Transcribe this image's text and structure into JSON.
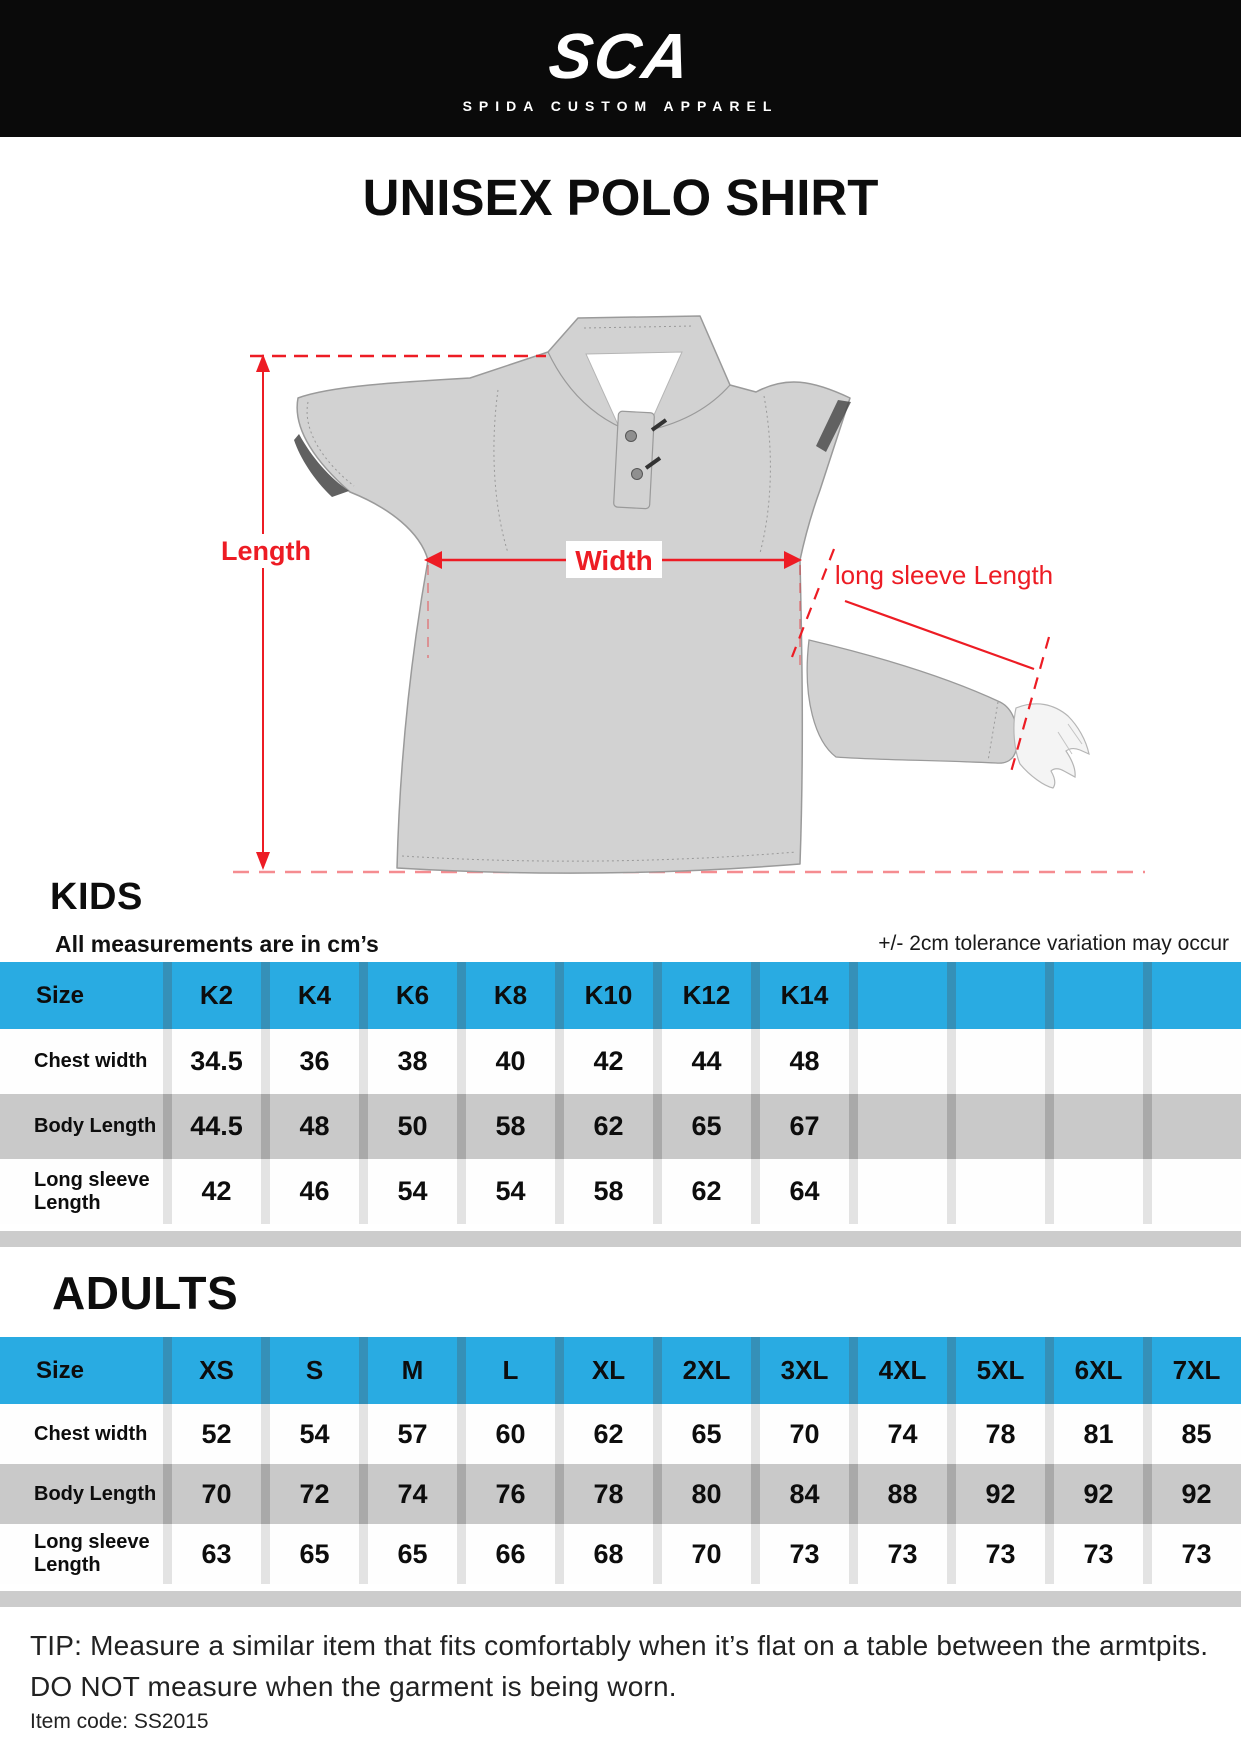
{
  "brand": {
    "logo": "SCA",
    "subtitle": "SPIDA CUSTOM APPAREL"
  },
  "title": "UNISEX POLO SHIRT",
  "diagram": {
    "length_label": "Length",
    "width_label": "Width",
    "long_sleeve_label": "long sleeve Length"
  },
  "kids": {
    "heading": "KIDS",
    "note_left": "All measurements are in cm’s",
    "note_right": "+/- 2cm tolerance variation may occur",
    "table": {
      "header": [
        "Size",
        "K2",
        "K4",
        "K6",
        "K8",
        "K10",
        "K12",
        "K14",
        "",
        "",
        "",
        ""
      ],
      "rows": [
        {
          "label": "Chest width",
          "values": [
            "34.5",
            "36",
            "38",
            "40",
            "42",
            "44",
            "48",
            "",
            "",
            "",
            ""
          ]
        },
        {
          "label": "Body Length",
          "values": [
            "44.5",
            "48",
            "50",
            "58",
            "62",
            "65",
            "67",
            "",
            "",
            "",
            ""
          ]
        },
        {
          "label": "Long sleeve Length",
          "values": [
            "42",
            "46",
            "54",
            "54",
            "58",
            "62",
            "64",
            "",
            "",
            "",
            ""
          ]
        }
      ]
    }
  },
  "adults": {
    "heading": "ADULTS",
    "table": {
      "header": [
        "Size",
        "XS",
        "S",
        "M",
        "L",
        "XL",
        "2XL",
        "3XL",
        "4XL",
        "5XL",
        "6XL",
        "7XL"
      ],
      "rows": [
        {
          "label": "Chest width",
          "values": [
            "52",
            "54",
            "57",
            "60",
            "62",
            "65",
            "70",
            "74",
            "78",
            "81",
            "85"
          ]
        },
        {
          "label": "Body Length",
          "values": [
            "70",
            "72",
            "74",
            "76",
            "78",
            "80",
            "84",
            "88",
            "92",
            "92",
            "92"
          ]
        },
        {
          "label": "Long sleeve Length",
          "values": [
            "63",
            "65",
            "65",
            "66",
            "68",
            "70",
            "73",
            "73",
            "73",
            "73",
            "73"
          ]
        }
      ]
    }
  },
  "footer": {
    "tip_line1": "TIP: Measure a similar item that fits comfortably when it’s flat on a table between the armtpits.",
    "tip_line2": "DO NOT measure when the garment is being worn.",
    "item_code": "Item code: SS2015"
  },
  "colors": {
    "accent_blue": "#29abe2",
    "blue_sep": "#3590b8",
    "row_gray": "#c9c9c9",
    "annotation_red": "#ed1c24",
    "shirt_gray": "#d2d2d2",
    "topbar_black": "#0a0a0a"
  }
}
